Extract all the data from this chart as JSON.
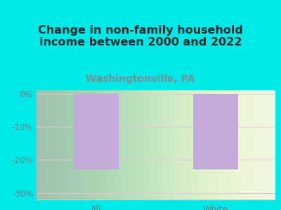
{
  "title": "Change in non-family household\nincome between 2000 and 2022",
  "subtitle": "Washingtonville, PA",
  "categories": [
    "All",
    "White"
  ],
  "values": [
    -23.0,
    -23.0
  ],
  "bar_color": "#c4aad8",
  "ylim": [
    -32,
    1
  ],
  "yticks": [
    0,
    -10,
    -20,
    -30
  ],
  "ytick_labels": [
    "0%",
    "-10%",
    "-20%",
    "-30%"
  ],
  "title_fontsize": 11.5,
  "subtitle_fontsize": 10,
  "subtitle_color": "#7a9090",
  "tick_color": "#6a8080",
  "grid_color": "#e0c8d8",
  "outer_bg": "#00e8e8",
  "bar_width": 0.38
}
